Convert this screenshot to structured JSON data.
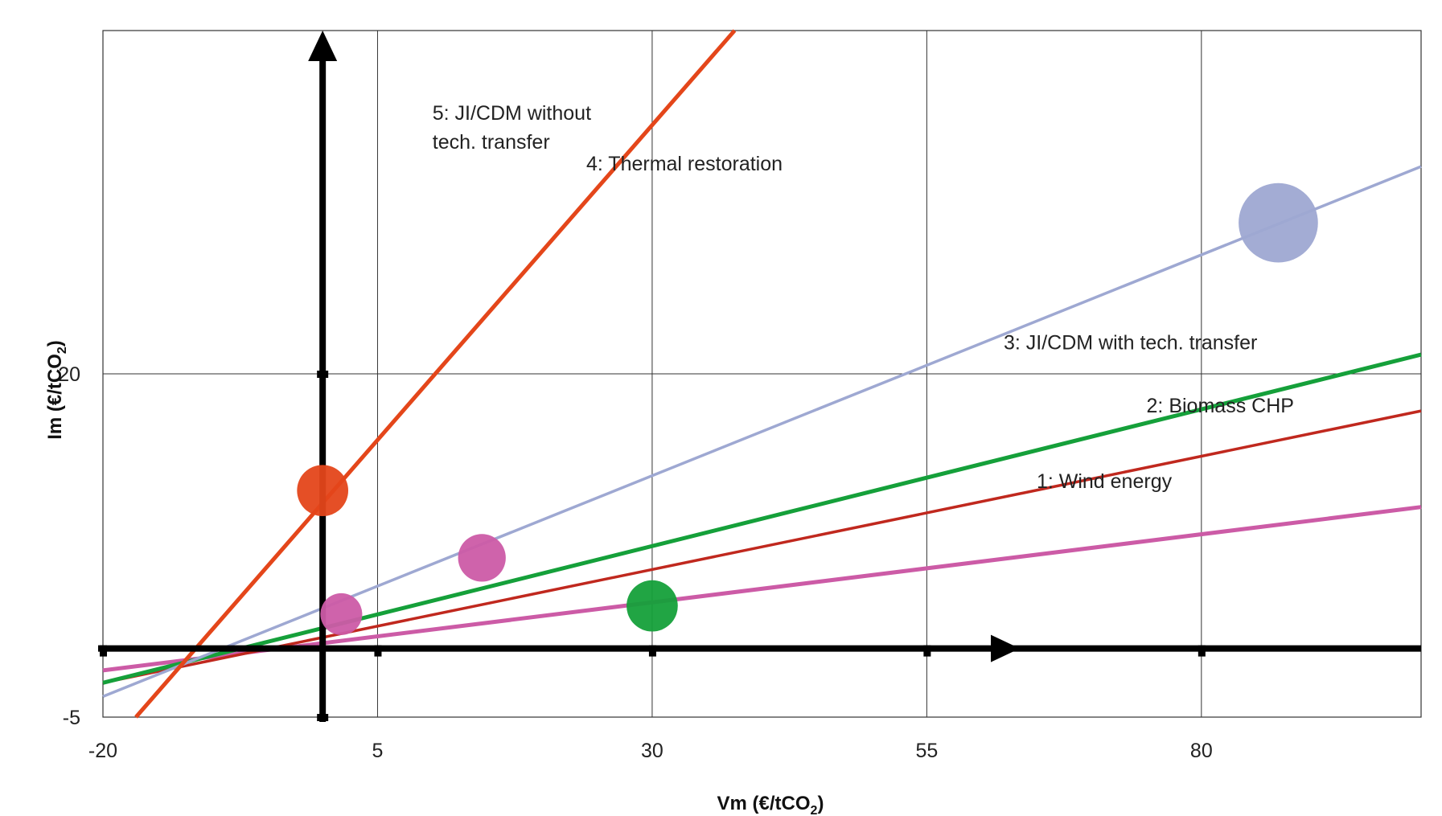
{
  "chart_data": {
    "type": "line",
    "xlabel": {
      "main": "Vm (€/tCO",
      "sub": "2",
      "close": ")"
    },
    "ylabel": {
      "main": "Im (€/tCO",
      "sub": "2",
      "close": ")"
    },
    "xlim": [
      -20,
      100
    ],
    "ylim": [
      -5,
      45
    ],
    "x_ticks": [
      "-20",
      "5",
      "30",
      "55",
      "80"
    ],
    "x_tick_values": [
      -20,
      5,
      30,
      55,
      80
    ],
    "y_ticks": [
      "20",
      "-5"
    ],
    "y_tick_values": [
      20,
      -5
    ],
    "grid": true,
    "series": [
      {
        "name": "1: Wind energy",
        "color": "#cc5ba6",
        "x": [
          -20,
          100
        ],
        "y": [
          -1.6,
          10.3
        ],
        "bubbles": [
          {
            "x": 1.7,
            "y": 2.5,
            "size": 1.0
          },
          {
            "x": 14.5,
            "y": 6.6,
            "size": 1.3
          }
        ]
      },
      {
        "name": "2: Biomass CHP",
        "color": "#c0281e",
        "x": [
          -20,
          100
        ],
        "y": [
          -2.5,
          17.3
        ],
        "bubbles": []
      },
      {
        "name": "3: JI/CDM with tech. transfer",
        "color": "#15a03a",
        "x": [
          -20,
          100
        ],
        "y": [
          -2.5,
          21.4
        ],
        "bubbles": [
          {
            "x": 30,
            "y": 3.1,
            "size": 1.5
          }
        ]
      },
      {
        "name": "4: Thermal restoration",
        "color": "#9ea8d2",
        "x": [
          -20,
          100
        ],
        "y": [
          -3.5,
          35.1
        ],
        "bubbles": [
          {
            "x": 87,
            "y": 31.0,
            "size": 2.5
          }
        ]
      },
      {
        "name": "5: JI/CDM without tech. transfer",
        "color": "#e4461a",
        "x": [
          -17,
          37.5
        ],
        "y": [
          -5,
          45
        ],
        "bubbles": [
          {
            "x": 0,
            "y": 11.5,
            "size": 1.5
          }
        ]
      }
    ],
    "annotations": [
      {
        "lines": [
          "5: JI/CDM without",
          "tech. transfer"
        ],
        "x": 10,
        "y": 38.5
      },
      {
        "lines": [
          "4: Thermal restoration"
        ],
        "x": 24,
        "y": 34.8
      },
      {
        "lines": [
          "3: JI/CDM with tech. transfer"
        ],
        "x": 62,
        "y": 21.8
      },
      {
        "lines": [
          "2: Biomass CHP"
        ],
        "x": 75,
        "y": 17.2
      },
      {
        "lines": [
          "1: Wind energy"
        ],
        "x": 65,
        "y": 11.7
      }
    ]
  }
}
